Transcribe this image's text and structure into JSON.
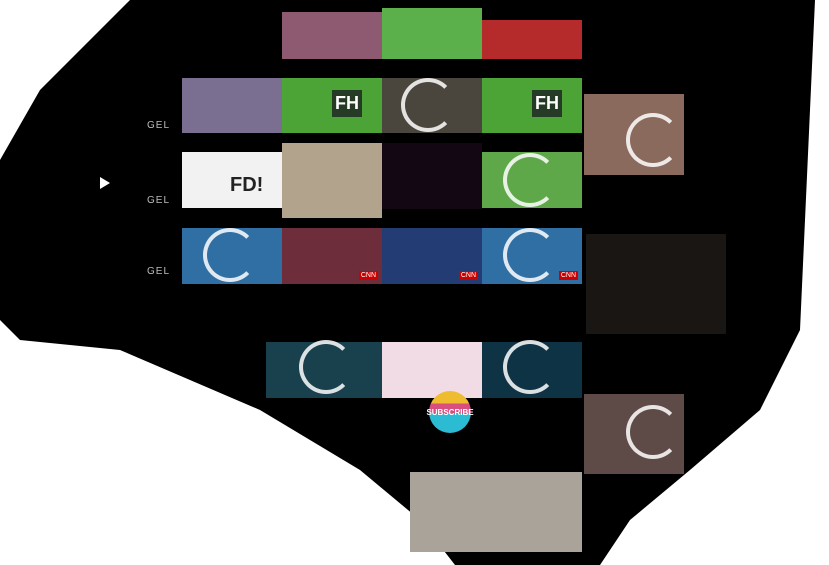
{
  "overlay": {
    "subscribe_label": "SUBSCRIBE",
    "fd_label": "FD!",
    "fh_label": "FH",
    "side_text": "GEL",
    "cnn_label": "CNN"
  },
  "colors": {
    "background": "#000000",
    "soccer_green": "#4ca336",
    "storm_blue": "#2f6fa4",
    "cnn_red": "#cc0000",
    "matrix_teal": "#19414d"
  }
}
